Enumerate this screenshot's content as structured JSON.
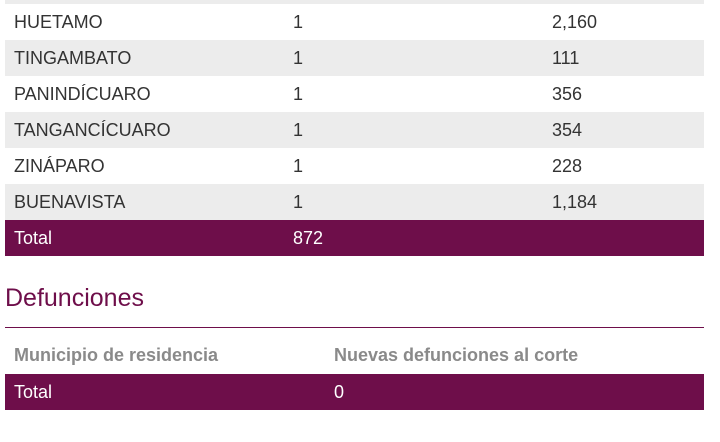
{
  "cases_table": {
    "rows": [
      {
        "municipio": "HUETAMO",
        "nuevos": "1",
        "acumulados": "2,160"
      },
      {
        "municipio": "TINGAMBATO",
        "nuevos": "1",
        "acumulados": "111"
      },
      {
        "municipio": "PANINDÍCUARO",
        "nuevos": "1",
        "acumulados": "356"
      },
      {
        "municipio": "TANGANCÍCUARO",
        "nuevos": "1",
        "acumulados": "354"
      },
      {
        "municipio": "ZINÁPARO",
        "nuevos": "1",
        "acumulados": "228"
      },
      {
        "municipio": "BUENAVISTA",
        "nuevos": "1",
        "acumulados": "1,184"
      }
    ],
    "total": {
      "label": "Total",
      "value": "872"
    }
  },
  "deaths_section": {
    "title": "Defunciones",
    "headers": {
      "municipio": "Municipio de residencia",
      "nuevas": "Nuevas defunciones al corte"
    },
    "total": {
      "label": "Total",
      "value": "0"
    }
  },
  "colors": {
    "accent": "#6e0e4a",
    "row_alt": "#ececec",
    "header_text": "#8a8a8a"
  }
}
